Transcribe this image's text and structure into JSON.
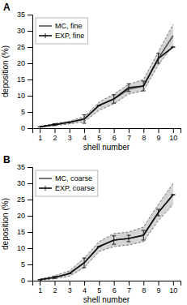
{
  "chart_data": [
    {
      "type": "line",
      "title": "A",
      "x": [
        1,
        2,
        3,
        4,
        5,
        6,
        7,
        8,
        9,
        10
      ],
      "xlim": [
        0.5,
        10.5
      ],
      "xticks": [
        1,
        2,
        3,
        4,
        5,
        6,
        7,
        8,
        9,
        10
      ],
      "ylim": [
        0,
        35
      ],
      "yticks": [
        0,
        5,
        10,
        15,
        20,
        25,
        30,
        35
      ],
      "xlabel": "shell number",
      "ylabel": "deposition (%)",
      "legend": "upper left",
      "series": [
        {
          "name": "MC, fine",
          "color": "#555555",
          "values": [
            0.4,
            1.1,
            1.8,
            2.8,
            7.0,
            9.0,
            12.0,
            13.0,
            21.5,
            28.5
          ],
          "upper": [
            0.6,
            1.4,
            2.2,
            3.5,
            8.0,
            10.5,
            13.5,
            15.0,
            23.5,
            32.0
          ],
          "lower": [
            0.2,
            0.8,
            1.3,
            2.0,
            5.5,
            7.5,
            10.5,
            11.5,
            19.5,
            25.5
          ]
        },
        {
          "name": "EXP, fine",
          "color": "#111111",
          "values": [
            0.4,
            1.1,
            1.8,
            2.8,
            7.0,
            9.0,
            12.5,
            13.0,
            21.5,
            25.0
          ],
          "errors": [
            0.0,
            0.3,
            0.0,
            1.3,
            0.0,
            1.3,
            1.2,
            1.5,
            1.5,
            0.0
          ]
        }
      ]
    },
    {
      "type": "line",
      "title": "B",
      "x": [
        1,
        2,
        3,
        4,
        5,
        6,
        7,
        8,
        9,
        10
      ],
      "xlim": [
        0.5,
        10.5
      ],
      "xticks": [
        1,
        2,
        3,
        4,
        5,
        6,
        7,
        8,
        9,
        10
      ],
      "ylim": [
        0,
        35
      ],
      "yticks": [
        0,
        5,
        10,
        15,
        20,
        25,
        30,
        35
      ],
      "xlabel": "shell number",
      "ylabel": "deposition (%)",
      "legend": "upper left",
      "series": [
        {
          "name": "MC, coarse",
          "color": "#555555",
          "values": [
            0.3,
            1.0,
            2.2,
            5.5,
            10.5,
            12.5,
            13.0,
            14.0,
            21.0,
            26.5
          ],
          "upper": [
            0.5,
            1.5,
            3.0,
            7.0,
            12.0,
            14.5,
            15.0,
            16.5,
            23.5,
            30.0
          ],
          "lower": [
            0.1,
            0.6,
            1.4,
            4.0,
            9.0,
            10.5,
            11.0,
            12.0,
            18.5,
            23.5
          ]
        },
        {
          "name": "EXP, coarse",
          "color": "#111111",
          "values": [
            0.3,
            1.0,
            2.2,
            5.5,
            10.5,
            12.5,
            13.0,
            14.0,
            21.0,
            26.5
          ],
          "errors": [
            0.0,
            0.3,
            0.0,
            1.5,
            0.0,
            1.3,
            1.0,
            1.5,
            1.0,
            0.0
          ]
        }
      ]
    }
  ]
}
